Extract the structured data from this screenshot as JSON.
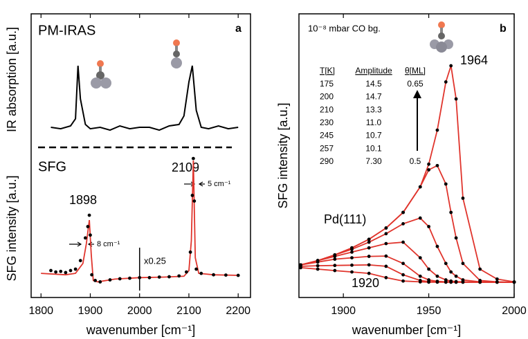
{
  "chart_data": [
    {
      "type": "line",
      "panel_label": "a",
      "title": "PM-IRAS",
      "subtitle": "SFG",
      "x_label": "wavenumber [cm⁻¹]",
      "y_labels": [
        "IR absorption [a.u.]",
        "SFG intensity [a.u.]"
      ],
      "xlim": [
        1780,
        2225
      ],
      "xticks": [
        1800,
        1900,
        2000,
        2100,
        2200
      ],
      "ylim": [
        0,
        10
      ],
      "annotations": [
        "1898",
        "2109",
        "8 cm⁻¹",
        "5 cm⁻¹",
        "x0.25"
      ],
      "series": [
        {
          "color": "#000000",
          "style": "line",
          "x": [
            1820,
            1840,
            1860,
            1870,
            1875,
            1880,
            1890,
            1900,
            1920,
            1940,
            1960,
            1980,
            2000,
            2020,
            2040,
            2060,
            2080,
            2090,
            2100,
            2107,
            2115,
            2125,
            2140,
            2160,
            2180,
            2200
          ],
          "values": [
            6.0,
            5.95,
            6.05,
            6.3,
            8.17,
            7.0,
            6.1,
            5.95,
            6.0,
            5.9,
            6.05,
            5.95,
            6.0,
            6.0,
            5.9,
            6.05,
            6.1,
            6.4,
            7.6,
            8.17,
            6.6,
            6.0,
            5.95,
            6.05,
            5.95,
            6.0
          ]
        },
        {
          "color": "#e0342c",
          "style": "line",
          "x": [
            1800,
            1850,
            1870,
            1885,
            1892,
            1898,
            1902,
            1906,
            1915,
            1950,
            2000,
            2050,
            2090,
            2100,
            2105,
            2109,
            2113,
            2120,
            2150,
            2200
          ],
          "values": [
            0.85,
            0.8,
            0.85,
            1.2,
            1.9,
            2.73,
            1.5,
            0.6,
            0.55,
            0.65,
            0.7,
            0.72,
            0.75,
            0.95,
            2.0,
            4.83,
            1.4,
            0.85,
            0.8,
            0.78
          ]
        },
        {
          "color": "#000000",
          "style": "dots",
          "x": [
            1820,
            1830,
            1840,
            1850,
            1860,
            1870,
            1880,
            1890,
            1895,
            1898,
            1900,
            1903,
            1910,
            1920,
            1940,
            1960,
            1980,
            2000,
            2020,
            2040,
            2060,
            2080,
            2095,
            2103,
            2107,
            2109,
            2111,
            2115,
            2125,
            2150,
            2175,
            2200
          ],
          "values": [
            0.95,
            0.9,
            0.92,
            0.88,
            0.95,
            1.0,
            1.3,
            2.1,
            2.5,
            2.9,
            2.2,
            0.8,
            0.6,
            0.55,
            0.62,
            0.66,
            0.68,
            0.7,
            0.7,
            0.72,
            0.73,
            0.76,
            0.9,
            1.6,
            3.6,
            4.9,
            3.4,
            1.0,
            0.85,
            0.8,
            0.79,
            0.78
          ]
        }
      ]
    },
    {
      "type": "line",
      "panel_label": "b",
      "x_label": "wavenumber [cm⁻¹]",
      "y_labels": [
        "SFG intensity [a.u.]"
      ],
      "xlim": [
        1874,
        2000
      ],
      "xticks": [
        1900,
        1950,
        2000
      ],
      "ylim": [
        0,
        10
      ],
      "annotations": [
        "10⁻⁸ mbar CO bg.",
        "1964",
        "1920",
        "Pd(111)"
      ],
      "table": {
        "header": [
          "T[K]",
          "Amplitude",
          "θ[ML]"
        ],
        "rows": [
          [
            "175",
            "14.5",
            "0.65"
          ],
          [
            "200",
            "14.7",
            ""
          ],
          [
            "210",
            "13.3",
            ""
          ],
          [
            "230",
            "11.0",
            ""
          ],
          [
            "245",
            "10.7",
            ""
          ],
          [
            "257",
            "10.1",
            ""
          ],
          [
            "290",
            "7.30",
            "0.5"
          ]
        ]
      },
      "x": [
        1875,
        1885,
        1895,
        1905,
        1915,
        1925,
        1935,
        1945,
        1950,
        1955,
        1960,
        1963,
        1966,
        1970,
        1980,
        1990,
        2000
      ],
      "series": [
        {
          "color": "#e0342c",
          "marker_color": "#000000",
          "style": "line+dots",
          "values": [
            1.15,
            1.3,
            1.5,
            1.75,
            2.05,
            2.45,
            3.0,
            3.9,
            4.7,
            5.9,
            7.6,
            8.17,
            7.0,
            3.5,
            1.0,
            0.65,
            0.55
          ]
        },
        {
          "color": "#e0342c",
          "marker_color": "#000000",
          "style": "line+dots",
          "values": [
            1.15,
            1.3,
            1.5,
            1.75,
            2.05,
            2.45,
            3.0,
            3.9,
            4.5,
            4.65,
            4.0,
            3.0,
            2.1,
            1.2,
            0.6,
            0.55,
            0.54
          ]
        },
        {
          "color": "#e0342c",
          "marker_color": "#000000",
          "style": "line+dots",
          "values": [
            1.15,
            1.3,
            1.5,
            1.7,
            1.95,
            2.25,
            2.6,
            2.8,
            2.5,
            1.8,
            1.2,
            0.9,
            0.75,
            0.62,
            0.55,
            0.54,
            0.54
          ]
        },
        {
          "color": "#e0342c",
          "marker_color": "#000000",
          "style": "line+dots",
          "values": [
            1.15,
            1.3,
            1.45,
            1.6,
            1.75,
            1.9,
            1.95,
            1.4,
            1.0,
            0.75,
            0.62,
            0.58,
            0.56,
            0.55,
            0.54,
            0.54,
            0.54
          ]
        },
        {
          "color": "#e0342c",
          "marker_color": "#000000",
          "style": "line+dots",
          "values": [
            1.15,
            1.25,
            1.35,
            1.4,
            1.45,
            1.46,
            1.2,
            0.75,
            0.62,
            0.57,
            0.55,
            0.55,
            0.54,
            0.54,
            0.54,
            0.54,
            0.54
          ]
        },
        {
          "color": "#e0342c",
          "marker_color": "#000000",
          "style": "line+dots",
          "values": [
            1.1,
            1.12,
            1.13,
            1.14,
            1.15,
            1.1,
            0.8,
            0.6,
            0.56,
            0.55,
            0.54,
            0.54,
            0.54,
            0.54,
            0.54,
            0.54,
            0.54
          ]
        },
        {
          "color": "#e0342c",
          "marker_color": "#000000",
          "style": "line+dots",
          "values": [
            1.05,
            1.0,
            0.95,
            0.9,
            0.85,
            0.7,
            0.58,
            0.55,
            0.54,
            0.54,
            0.54,
            0.54,
            0.54,
            0.54,
            0.54,
            0.54,
            0.54
          ]
        }
      ]
    }
  ]
}
